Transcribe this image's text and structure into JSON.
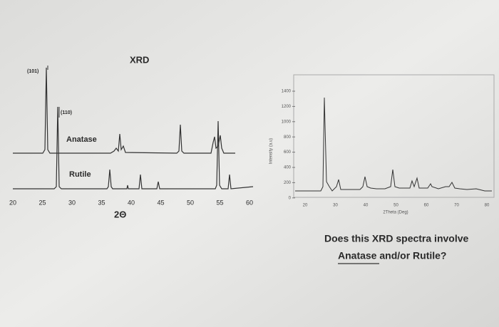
{
  "left_figure": {
    "title": "XRD",
    "peak_labels": [
      "(101)",
      "(110)"
    ],
    "phase_labels": [
      "Anatase",
      "Rutile"
    ],
    "x_ticks": [
      "20",
      "25",
      "30",
      "35",
      "40",
      "45",
      "50",
      "55",
      "60"
    ],
    "x_label": "2Θ"
  },
  "right_figure": {
    "y_ticks": [
      "1400",
      "1200",
      "1000",
      "800",
      "600",
      "400",
      "200",
      "0"
    ],
    "y_label": "Intensity (a.u)",
    "x_ticks": [
      "20",
      "30",
      "40",
      "50",
      "60",
      "70",
      "80"
    ],
    "x_label": "2Theta (Deg)"
  },
  "question": {
    "lines": [
      "Does this XRD spectra involve",
      "Anatase and/or Rutile?"
    ]
  }
}
